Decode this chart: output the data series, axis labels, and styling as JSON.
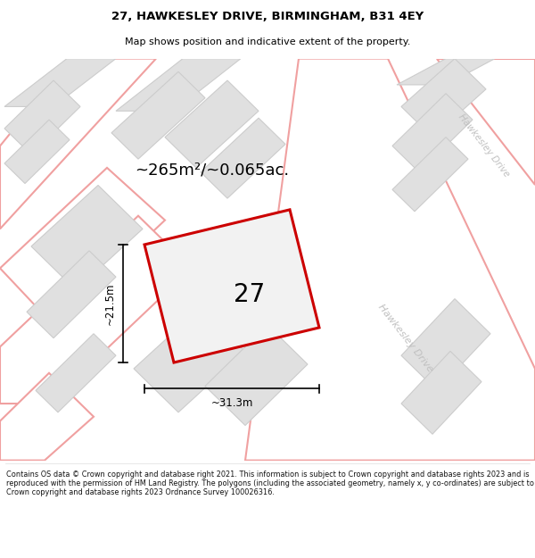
{
  "title_line1": "27, HAWKESLEY DRIVE, BIRMINGHAM, B31 4EY",
  "title_line2": "Map shows position and indicative extent of the property.",
  "area_text": "~265m²/~0.065ac.",
  "dim_width": "~31.3m",
  "dim_height": "~21.5m",
  "plot_number": "27",
  "bg_color": "#efefef",
  "road_color": "#ffffff",
  "road_edge": "#f0a0a0",
  "building_color": "#e0e0e0",
  "building_edge": "#cccccc",
  "plot_color": "#cc0000",
  "road_label_color": "#c0c0c0",
  "footer_text": "Contains OS data © Crown copyright and database right 2021. This information is subject to Crown copyright and database rights 2023 and is reproduced with the permission of HM Land Registry. The polygons (including the associated geometry, namely x, y co-ordinates) are subject to Crown copyright and database rights 2023 Ordnance Survey 100026316.",
  "road_lw": 1.5,
  "bld_lw": 0.8,
  "prop_lw": 2.2
}
